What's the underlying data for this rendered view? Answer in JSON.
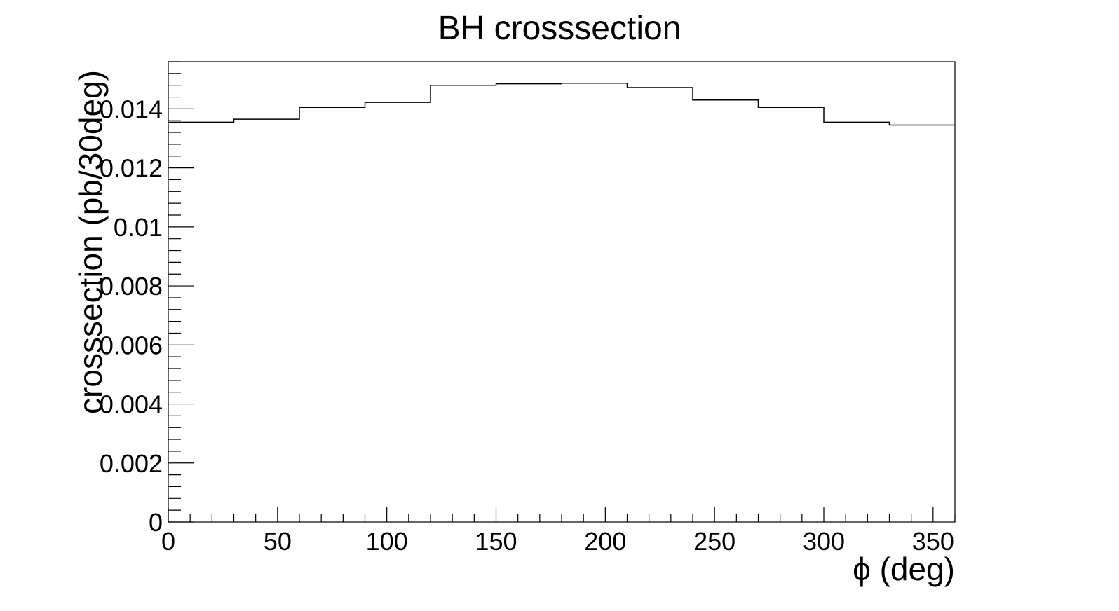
{
  "chart_data": {
    "type": "bar",
    "style": "step-histogram",
    "title": "BH crosssection",
    "xlabel": "ϕ (deg)",
    "ylabel": "crosssection (pb/30deg)",
    "xlim": [
      0,
      360
    ],
    "ylim": [
      0,
      0.0156
    ],
    "x_ticks": [
      "0",
      "50",
      "100",
      "150",
      "200",
      "250",
      "300",
      "350"
    ],
    "y_ticks": [
      "0",
      "0.002",
      "0.004",
      "0.006",
      "0.008",
      "0.01",
      "0.012",
      "0.014"
    ],
    "grid": false,
    "legend": "none",
    "bin_edges": [
      0,
      30,
      60,
      90,
      120,
      150,
      180,
      210,
      240,
      270,
      300,
      330,
      360
    ],
    "values": [
      0.01355,
      0.01365,
      0.01405,
      0.01422,
      0.0148,
      0.01485,
      0.01487,
      0.01472,
      0.0143,
      0.01405,
      0.01355,
      0.01345
    ],
    "line_color": "#000000"
  }
}
